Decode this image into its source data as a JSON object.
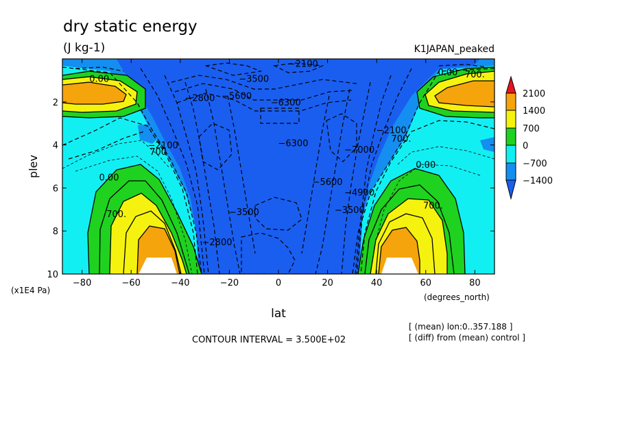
{
  "chart_data": {
    "type": "contour",
    "title": "dry static energy",
    "units": "(J kg-1)",
    "experiment": "K1JAPAN_peaked",
    "xlabel": "lat",
    "x_units": "(degrees_north)",
    "ylabel": "plev",
    "y_units": "(x1E4 Pa)",
    "xlim": [
      -88,
      88
    ],
    "ylim": [
      10,
      0
    ],
    "x_ticks": [
      "-80",
      "-60",
      "-40",
      "-20",
      "0",
      "20",
      "40",
      "60",
      "80"
    ],
    "y_ticks": [
      "2",
      "4",
      "6",
      "8",
      "10"
    ],
    "contour_interval_text": "CONTOUR INTERVAL = 3.500E+02",
    "notes": [
      "[ (mean) lon:0..357.188 ]",
      "[ (diff) from (mean) control ]"
    ],
    "colorbar": {
      "labels": [
        "2100",
        "1400",
        "700",
        "0",
        "-700",
        "-1400"
      ],
      "colors": {
        "above_2100": "#e8141c",
        "1400_2100": "#f5a40c",
        "700_1400": "#f5f20f",
        "0_700": "#1fd21f",
        "-700_0": "#12eff3",
        "-1400_-700": "#148ef0",
        "below_-1400": "#1a5ef0"
      }
    },
    "contour_labels": [
      {
        "text": "0.00",
        "lat": -73,
        "p": 0.9
      },
      {
        "text": "700.",
        "lat": 80,
        "p": 0.7
      },
      {
        "text": "0.00",
        "lat": 69,
        "p": 0.6
      },
      {
        "text": "700",
        "lat": -49,
        "p": 4.3
      },
      {
        "text": "0.00",
        "lat": -69,
        "p": 5.5
      },
      {
        "text": "700.",
        "lat": -66,
        "p": 7.2
      },
      {
        "text": "0.00",
        "lat": 60,
        "p": 4.9
      },
      {
        "text": "700.",
        "lat": 63,
        "p": 6.8
      },
      {
        "text": "700.",
        "lat": 50,
        "p": 3.7
      },
      {
        "text": "-6300",
        "lat": 3,
        "p": 2.0
      },
      {
        "text": "-6300",
        "lat": 6,
        "p": 3.9
      },
      {
        "text": "-5600",
        "lat": -17,
        "p": 1.7
      },
      {
        "text": "-3500",
        "lat": -10,
        "p": 0.9
      },
      {
        "text": "-2800",
        "lat": -32,
        "p": 1.8
      },
      {
        "text": "-2100",
        "lat": 10,
        "p": 0.2
      },
      {
        "text": "-2800",
        "lat": -25,
        "p": 8.5
      },
      {
        "text": "-3500",
        "lat": -14,
        "p": 7.1
      },
      {
        "text": "-5600",
        "lat": 20,
        "p": 5.7
      },
      {
        "text": "-7000",
        "lat": 33,
        "p": 4.2
      },
      {
        "text": "-2100",
        "lat": 46,
        "p": 3.3
      },
      {
        "text": "-2100",
        "lat": -47,
        "p": 4.0
      },
      {
        "text": "-3500",
        "lat": 29,
        "p": 7.0
      },
      {
        "text": "-4900",
        "lat": 33,
        "p": 6.2
      }
    ]
  }
}
